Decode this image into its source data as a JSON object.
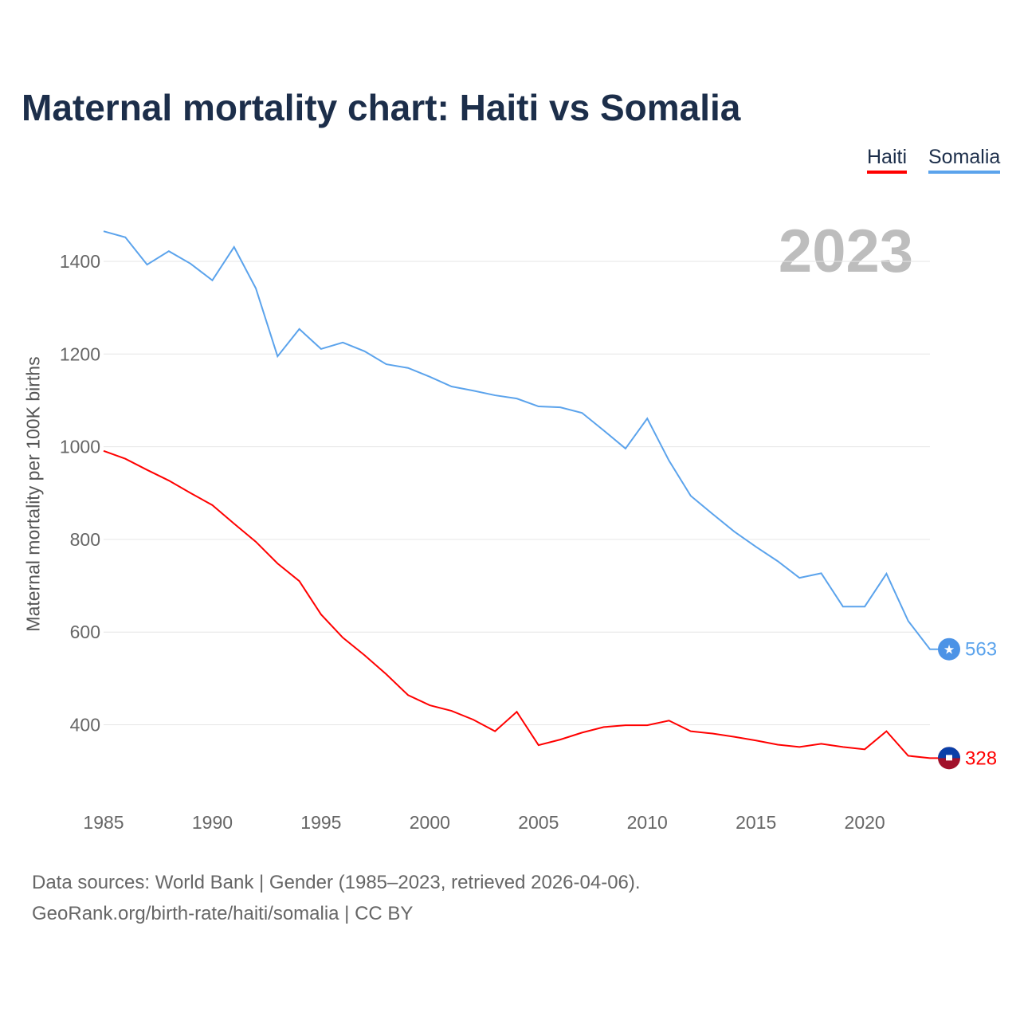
{
  "title": "Maternal mortality chart: Haiti vs Somalia",
  "year_label": "2023",
  "source_line1": "Data sources: World Bank | Gender (1985–2023, retrieved 2026-04-06).",
  "source_line2": "GeoRank.org/birth-rate/haiti/somalia | CC BY",
  "chart_data": {
    "type": "line",
    "title": "Maternal mortality chart: Haiti vs Somalia",
    "xlabel": "",
    "ylabel": "Maternal mortality per 100K births",
    "xlim": [
      1985,
      2023
    ],
    "ylim": [
      300,
      1500
    ],
    "xticks": [
      1985,
      1990,
      1995,
      2000,
      2005,
      2010,
      2015,
      2020
    ],
    "yticks": [
      400,
      600,
      800,
      1000,
      1200,
      1400
    ],
    "legend": "top-right",
    "x": [
      1985,
      1986,
      1987,
      1988,
      1989,
      1990,
      1991,
      1992,
      1993,
      1994,
      1995,
      1996,
      1997,
      1998,
      1999,
      2000,
      2001,
      2002,
      2003,
      2004,
      2005,
      2006,
      2007,
      2008,
      2009,
      2010,
      2011,
      2012,
      2013,
      2014,
      2015,
      2016,
      2017,
      2018,
      2019,
      2020,
      2021,
      2022,
      2023
    ],
    "series": [
      {
        "name": "Haiti",
        "color": "#ff0000",
        "end_label": "328",
        "values": [
          991,
          974,
          950,
          927,
          900,
          874,
          834,
          795,
          748,
          710,
          638,
          588,
          550,
          509,
          464,
          442,
          430,
          411,
          386,
          428,
          356,
          368,
          383,
          395,
          399,
          399,
          409,
          386,
          381,
          374,
          366,
          357,
          352,
          359,
          352,
          347,
          386,
          333,
          328
        ]
      },
      {
        "name": "Somalia",
        "color": "#5ba3ec",
        "end_label": "563",
        "values": [
          1465,
          1452,
          1393,
          1422,
          1395,
          1359,
          1431,
          1342,
          1195,
          1254,
          1211,
          1225,
          1206,
          1178,
          1170,
          1151,
          1130,
          1121,
          1111,
          1104,
          1087,
          1085,
          1073,
          1035,
          996,
          1061,
          970,
          894,
          855,
          817,
          784,
          753,
          717,
          727,
          655,
          655,
          726,
          624,
          563
        ]
      }
    ]
  }
}
